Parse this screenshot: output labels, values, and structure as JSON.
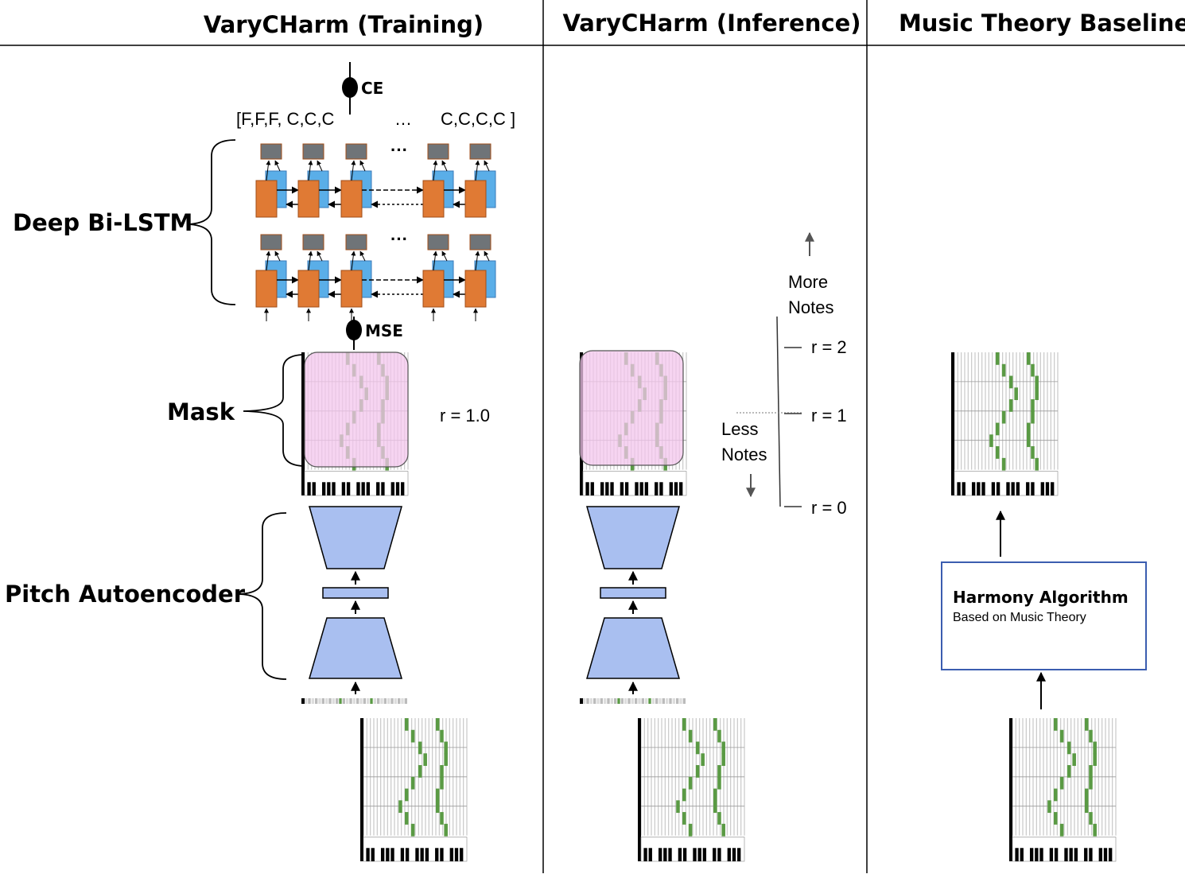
{
  "columns": {
    "training": "VaryCHarm (Training)",
    "inference": "VaryCHarm (Inference)",
    "baseline": "Music Theory Baseline"
  },
  "training": {
    "ce_label": "CE",
    "sequence": {
      "open": "[F,F,F, C,C,C",
      "ellipsis": "…",
      "close": "C,C,C,C  ]"
    },
    "lstm_ellipsis": "···",
    "mse_label": "MSE",
    "deep_bilstm_label": "Deep Bi-LSTM",
    "mask_label": "Mask",
    "r_value": "r = 1.0",
    "autoencoder_label": "Pitch Autoencoder"
  },
  "inference": {
    "more_notes": [
      "More",
      "Notes"
    ],
    "less_notes": [
      "Less",
      "Notes"
    ],
    "r_levels": [
      "r = 2",
      "r = 1",
      "r = 0"
    ]
  },
  "baseline": {
    "algorithm_title": "Harmony Algorithm",
    "algorithm_subtitle": "Based on Music Theory"
  },
  "colors": {
    "lstm_forward": "#e07a34",
    "lstm_backward": "#5aaee8",
    "lstm_output": "#6f7478",
    "mask_fill": "#f3c6ec",
    "autoencoder_fill": "#a9bff0",
    "roll_note": "#5a9a44",
    "algorithm_box": "#3b5db0"
  }
}
